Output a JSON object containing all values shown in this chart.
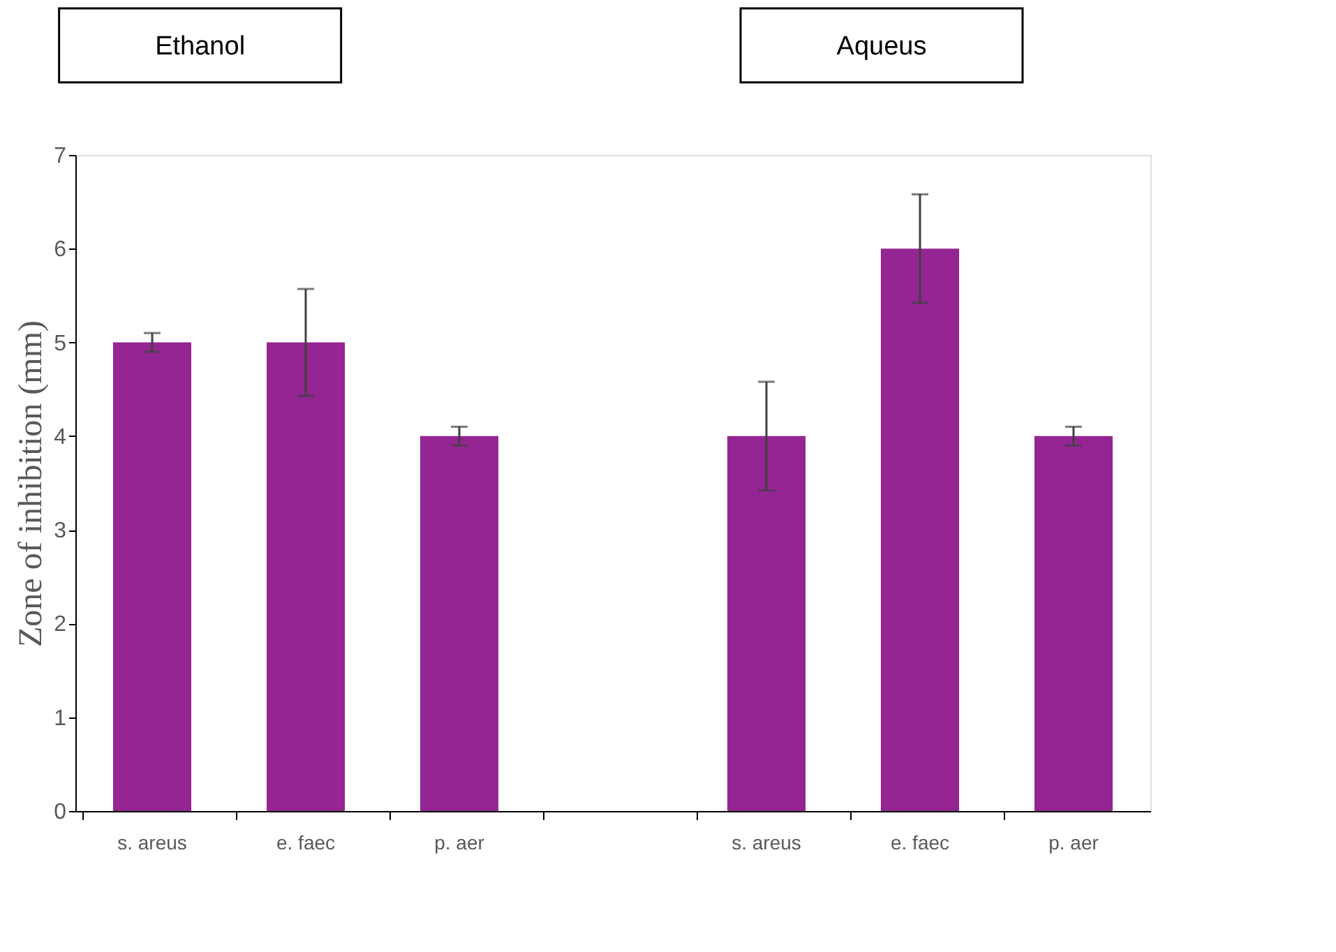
{
  "chart_data": {
    "type": "bar",
    "ylabel": "Zone of inhibition (mm)",
    "categories": [
      "s. areus",
      "e. faec",
      "p. aer",
      null,
      "s. areus",
      "e. faec",
      "p. aer"
    ],
    "series": [
      {
        "color": "#952592",
        "values": [
          5,
          5,
          4,
          null,
          4,
          6,
          4
        ],
        "errors": [
          0.1,
          0.57,
          0.1,
          null,
          0.58,
          0.58,
          0.1
        ]
      }
    ],
    "ylim": [
      0,
      7
    ],
    "yticks": [
      0,
      1,
      2,
      3,
      4,
      5,
      6,
      7
    ],
    "grid": false,
    "legend": false,
    "annotations": [
      "Ethanol",
      "Aqueus"
    ]
  }
}
